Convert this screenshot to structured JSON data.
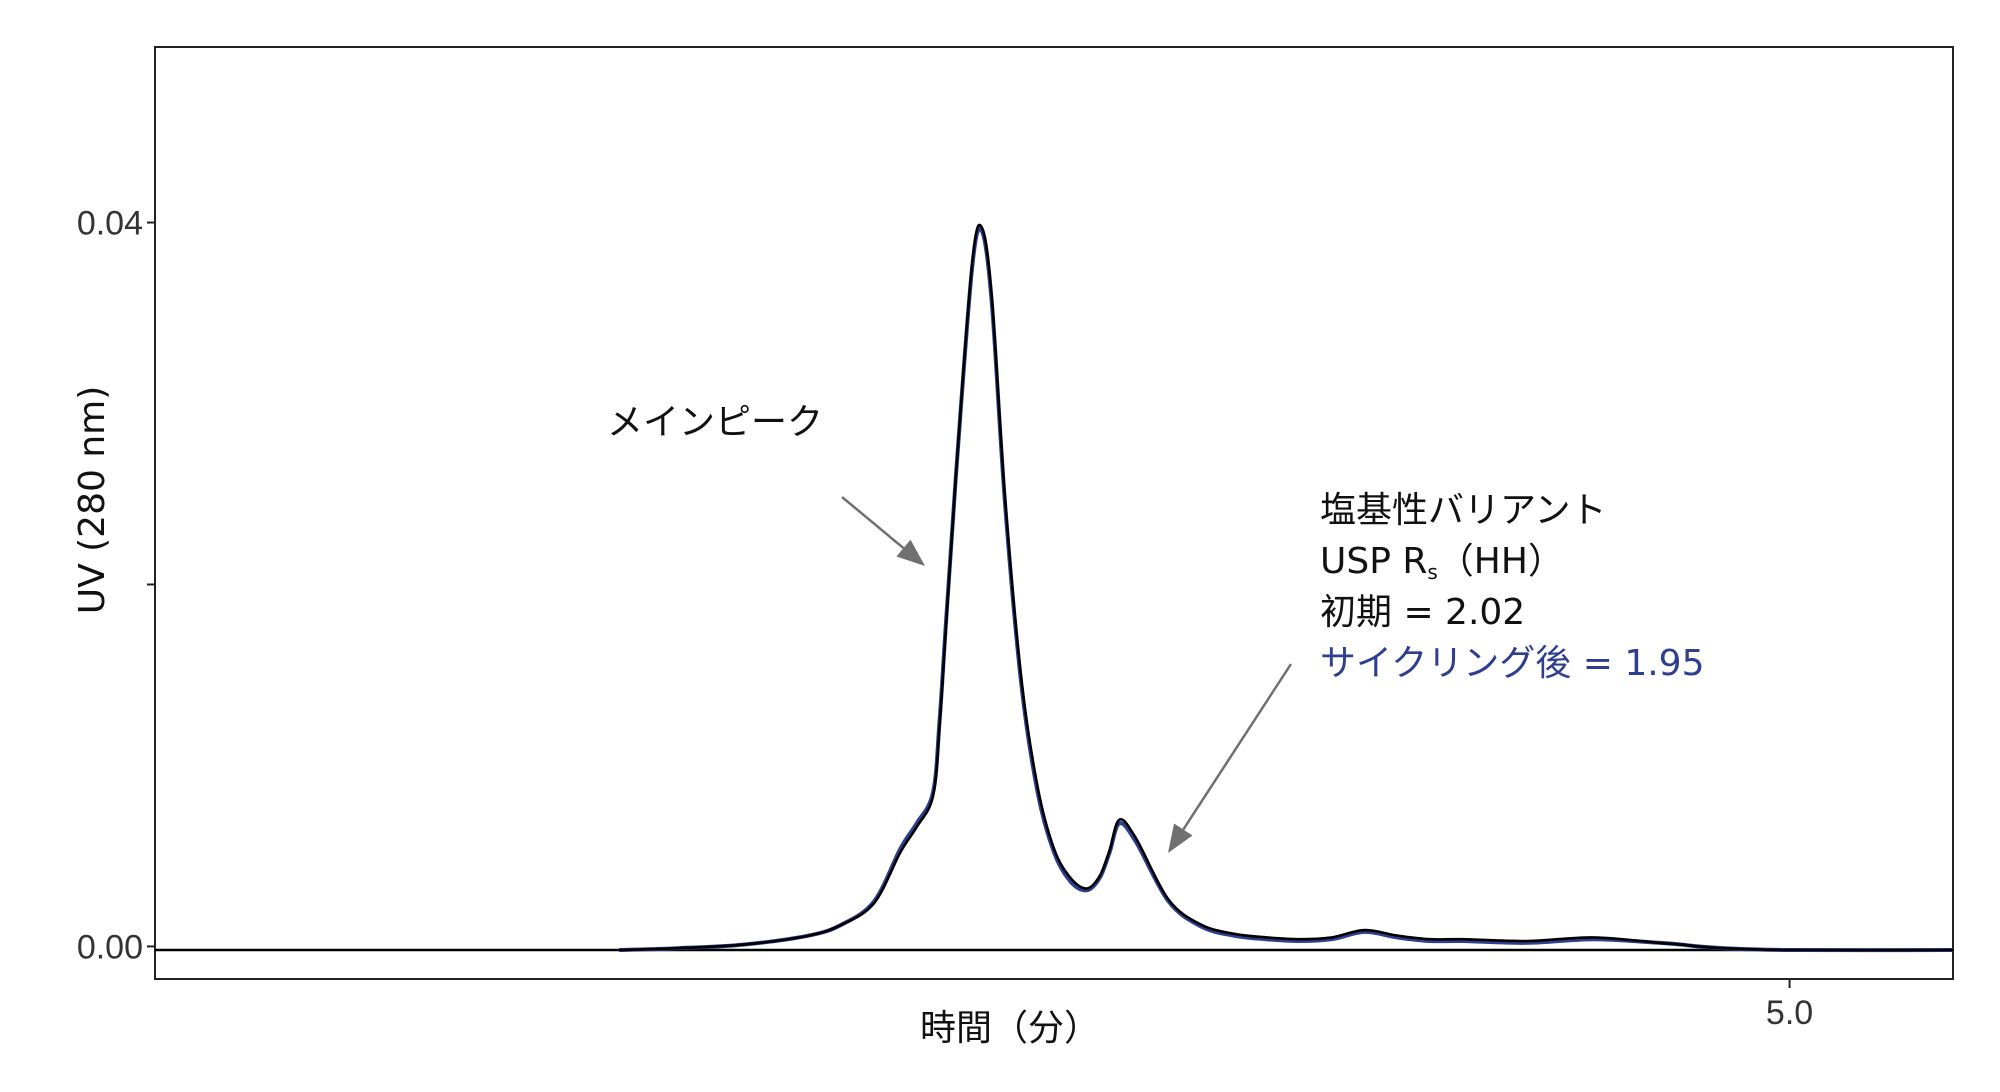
{
  "chart_data": {
    "type": "line",
    "title": "",
    "xlabel": "時間（分）",
    "ylabel": "UV (280 nm)",
    "xlim": [
      0.0,
      5.5
    ],
    "ylim": [
      -0.0018,
      0.0497
    ],
    "x_ticks": [
      {
        "value": 5.0,
        "label": "5.0"
      }
    ],
    "y_ticks": [
      {
        "value": 0.0,
        "label": "0.00"
      },
      {
        "value": 0.02,
        "label": ""
      },
      {
        "value": 0.04,
        "label": "0.04"
      }
    ],
    "grid": false,
    "legend": "none",
    "baseline_value": -0.0002,
    "series": [
      {
        "color": "#2e3f8f",
        "x": [
          1.42,
          1.6,
          1.8,
          2.0,
          2.1,
          2.2,
          2.28,
          2.33,
          2.38,
          2.4,
          2.42,
          2.45,
          2.5,
          2.53,
          2.56,
          2.6,
          2.65,
          2.7,
          2.75,
          2.8,
          2.85,
          2.89,
          2.92,
          2.95,
          3.0,
          3.1,
          3.2,
          3.3,
          3.4,
          3.5,
          3.6,
          3.7,
          3.8,
          3.9,
          4.0,
          4.2,
          4.4,
          4.6,
          4.67,
          4.72,
          4.8,
          5.0,
          5.5
        ],
        "y": [
          -0.0002,
          -0.0001,
          0.0001,
          0.0006,
          0.0012,
          0.0025,
          0.0054,
          0.0068,
          0.0085,
          0.0125,
          0.018,
          0.026,
          0.0376,
          0.0395,
          0.0355,
          0.0245,
          0.0145,
          0.0085,
          0.0052,
          0.0036,
          0.0031,
          0.0038,
          0.0052,
          0.0068,
          0.0058,
          0.0025,
          0.0011,
          0.0006,
          0.0004,
          0.0003,
          0.0004,
          0.0008,
          0.0005,
          0.0003,
          0.0003,
          0.0002,
          0.0004,
          0.0002,
          0.0001,
          0.0,
          -0.0001,
          -0.0002,
          -0.0002
        ]
      },
      {
        "color": "#000000",
        "x": [
          1.42,
          1.6,
          1.8,
          2.0,
          2.1,
          2.2,
          2.28,
          2.33,
          2.38,
          2.4,
          2.42,
          2.45,
          2.5,
          2.53,
          2.56,
          2.6,
          2.65,
          2.7,
          2.75,
          2.8,
          2.85,
          2.89,
          2.92,
          2.95,
          3.0,
          3.1,
          3.2,
          3.3,
          3.4,
          3.5,
          3.6,
          3.7,
          3.8,
          3.9,
          4.0,
          4.2,
          4.4,
          4.6,
          4.67,
          4.72,
          4.8,
          5.0,
          5.5
        ],
        "y": [
          -0.0002,
          -0.0001,
          0.0001,
          0.0006,
          0.0012,
          0.0024,
          0.0052,
          0.0066,
          0.0083,
          0.0122,
          0.0178,
          0.026,
          0.0378,
          0.0397,
          0.0358,
          0.0248,
          0.0148,
          0.0088,
          0.0054,
          0.0038,
          0.0032,
          0.0039,
          0.0053,
          0.007,
          0.006,
          0.0026,
          0.0012,
          0.0007,
          0.0005,
          0.0004,
          0.0005,
          0.0009,
          0.0006,
          0.0004,
          0.0004,
          0.0003,
          0.0005,
          0.0002,
          0.0001,
          0.0,
          -0.0001,
          -0.0002,
          -0.0002
        ]
      }
    ],
    "annotations": {
      "main_peak_label": "メインピーク",
      "variant_title": "塩基性バリアント",
      "usp_prefix": "USP R",
      "usp_subscript": "s",
      "usp_suffix": "（HH）",
      "initial_line": "初期 = 2.02",
      "after_cycling_line": "サイクリング後 = 1.95",
      "after_cycling_color": "#2e3f8f",
      "arrow_color": "#707070"
    }
  }
}
